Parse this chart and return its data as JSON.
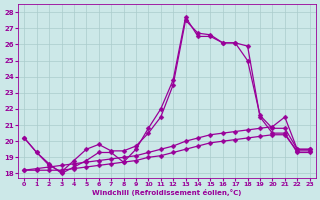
{
  "xlabel": "Windchill (Refroidissement éolien,°C)",
  "ylabel": "",
  "xlim": [
    -0.5,
    23.5
  ],
  "ylim": [
    17.7,
    28.5
  ],
  "yticks": [
    18,
    19,
    20,
    21,
    22,
    23,
    24,
    25,
    26,
    27,
    28
  ],
  "xticks": [
    0,
    1,
    2,
    3,
    4,
    5,
    6,
    7,
    8,
    9,
    10,
    11,
    12,
    13,
    14,
    15,
    16,
    17,
    18,
    19,
    20,
    21,
    22,
    23
  ],
  "background_color": "#cce8e8",
  "grid_color": "#aacccc",
  "line_color": "#990099",
  "series": [
    {
      "x": [
        0,
        1,
        2,
        3,
        4,
        5,
        6,
        7,
        8,
        9,
        10,
        11,
        12,
        13,
        14,
        15,
        16,
        17,
        18,
        19,
        20,
        21,
        22,
        23
      ],
      "y": [
        20.2,
        19.3,
        18.6,
        18.0,
        18.4,
        18.8,
        19.3,
        19.3,
        18.7,
        19.5,
        20.8,
        22.0,
        23.8,
        27.7,
        26.5,
        26.5,
        26.1,
        26.1,
        25.0,
        21.6,
        20.8,
        20.8,
        19.5,
        19.5
      ]
    },
    {
      "x": [
        0,
        1,
        2,
        3,
        4,
        5,
        6,
        7,
        8,
        9,
        10,
        11,
        12,
        13,
        14,
        15,
        16,
        17,
        18,
        19,
        20,
        21,
        22,
        23
      ],
      "y": [
        20.2,
        19.3,
        18.5,
        18.1,
        18.8,
        19.5,
        19.8,
        19.4,
        19.4,
        19.7,
        20.5,
        21.5,
        23.5,
        27.5,
        26.7,
        26.6,
        26.1,
        26.1,
        25.9,
        21.5,
        20.5,
        20.5,
        19.3,
        19.3
      ]
    },
    {
      "x": [
        0,
        1,
        2,
        3,
        4,
        5,
        6,
        7,
        8,
        9,
        10,
        11,
        12,
        13,
        14,
        15,
        16,
        17,
        18,
        19,
        20,
        21,
        22,
        23
      ],
      "y": [
        18.2,
        18.3,
        18.4,
        18.5,
        18.6,
        18.7,
        18.8,
        18.9,
        19.0,
        19.1,
        19.3,
        19.5,
        19.7,
        20.0,
        20.2,
        20.4,
        20.5,
        20.6,
        20.7,
        20.8,
        20.9,
        21.5,
        19.5,
        19.5
      ]
    },
    {
      "x": [
        0,
        1,
        2,
        3,
        4,
        5,
        6,
        7,
        8,
        9,
        10,
        11,
        12,
        13,
        14,
        15,
        16,
        17,
        18,
        19,
        20,
        21,
        22,
        23
      ],
      "y": [
        18.2,
        18.2,
        18.2,
        18.2,
        18.3,
        18.4,
        18.5,
        18.6,
        18.7,
        18.8,
        19.0,
        19.1,
        19.3,
        19.5,
        19.7,
        19.9,
        20.0,
        20.1,
        20.2,
        20.3,
        20.4,
        20.4,
        19.4,
        19.4
      ]
    }
  ]
}
